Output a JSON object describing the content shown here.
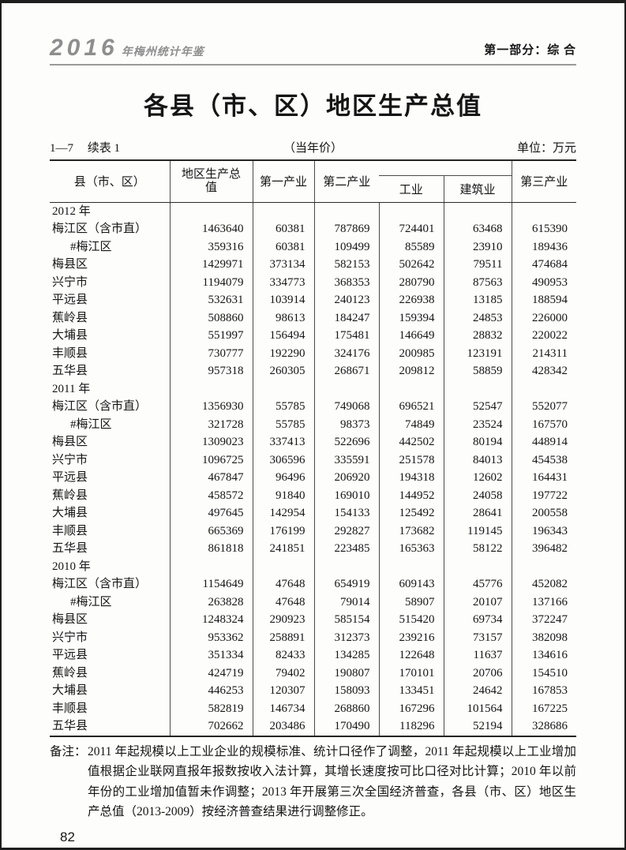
{
  "header": {
    "logo_year": "2016",
    "logo_suffix": "年梅州统计年鉴",
    "section": "第一部分：综 合"
  },
  "title": "各县（市、区）地区生产总值",
  "table_meta": {
    "table_no": "1—7",
    "table_label": "续表 1",
    "price_note": "（当年价）",
    "unit": "单位：万元"
  },
  "table": {
    "headers": {
      "region": "县（市、区）",
      "gdp": "地区生产总值",
      "primary": "第一产业",
      "secondary": "第二产业",
      "industry": "工业",
      "construction": "建筑业",
      "tertiary": "第三产业"
    },
    "sections": [
      {
        "year": "2012 年",
        "rows": [
          {
            "name": "梅江区（含市直）",
            "indent": false,
            "values": [
              "1463640",
              "60381",
              "787869",
              "724401",
              "63468",
              "615390"
            ]
          },
          {
            "name": "#梅江区",
            "indent": true,
            "values": [
              "359316",
              "60381",
              "109499",
              "85589",
              "23910",
              "189436"
            ]
          },
          {
            "name": "梅县区",
            "indent": false,
            "values": [
              "1429971",
              "373134",
              "582153",
              "502642",
              "79511",
              "474684"
            ]
          },
          {
            "name": "兴宁市",
            "indent": false,
            "values": [
              "1194079",
              "334773",
              "368353",
              "280790",
              "87563",
              "490953"
            ]
          },
          {
            "name": "平远县",
            "indent": false,
            "values": [
              "532631",
              "103914",
              "240123",
              "226938",
              "13185",
              "188594"
            ]
          },
          {
            "name": "蕉岭县",
            "indent": false,
            "values": [
              "508860",
              "98613",
              "184247",
              "159394",
              "24853",
              "226000"
            ]
          },
          {
            "name": "大埔县",
            "indent": false,
            "values": [
              "551997",
              "156494",
              "175481",
              "146649",
              "28832",
              "220022"
            ]
          },
          {
            "name": "丰顺县",
            "indent": false,
            "values": [
              "730777",
              "192290",
              "324176",
              "200985",
              "123191",
              "214311"
            ]
          },
          {
            "name": "五华县",
            "indent": false,
            "values": [
              "957318",
              "260305",
              "268671",
              "209812",
              "58859",
              "428342"
            ]
          }
        ]
      },
      {
        "year": "2011 年",
        "rows": [
          {
            "name": "梅江区（含市直）",
            "indent": false,
            "values": [
              "1356930",
              "55785",
              "749068",
              "696521",
              "52547",
              "552077"
            ]
          },
          {
            "name": "#梅江区",
            "indent": true,
            "values": [
              "321728",
              "55785",
              "98373",
              "74849",
              "23524",
              "167570"
            ]
          },
          {
            "name": "梅县区",
            "indent": false,
            "values": [
              "1309023",
              "337413",
              "522696",
              "442502",
              "80194",
              "448914"
            ]
          },
          {
            "name": "兴宁市",
            "indent": false,
            "values": [
              "1096725",
              "306596",
              "335591",
              "251578",
              "84013",
              "454538"
            ]
          },
          {
            "name": "平远县",
            "indent": false,
            "values": [
              "467847",
              "96496",
              "206920",
              "194318",
              "12602",
              "164431"
            ]
          },
          {
            "name": "蕉岭县",
            "indent": false,
            "values": [
              "458572",
              "91840",
              "169010",
              "144952",
              "24058",
              "197722"
            ]
          },
          {
            "name": "大埔县",
            "indent": false,
            "values": [
              "497645",
              "142954",
              "154133",
              "125492",
              "28641",
              "200558"
            ]
          },
          {
            "name": "丰顺县",
            "indent": false,
            "values": [
              "665369",
              "176199",
              "292827",
              "173682",
              "119145",
              "196343"
            ]
          },
          {
            "name": "五华县",
            "indent": false,
            "values": [
              "861818",
              "241851",
              "223485",
              "165363",
              "58122",
              "396482"
            ]
          }
        ]
      },
      {
        "year": "2010 年",
        "rows": [
          {
            "name": "梅江区（含市直）",
            "indent": false,
            "values": [
              "1154649",
              "47648",
              "654919",
              "609143",
              "45776",
              "452082"
            ]
          },
          {
            "name": "#梅江区",
            "indent": true,
            "values": [
              "263828",
              "47648",
              "79014",
              "58907",
              "20107",
              "137166"
            ]
          },
          {
            "name": "梅县区",
            "indent": false,
            "values": [
              "1248324",
              "290923",
              "585154",
              "515420",
              "69734",
              "372247"
            ]
          },
          {
            "name": "兴宁市",
            "indent": false,
            "values": [
              "953362",
              "258891",
              "312373",
              "239216",
              "73157",
              "382098"
            ]
          },
          {
            "name": "平远县",
            "indent": false,
            "values": [
              "351334",
              "82433",
              "134285",
              "122648",
              "11637",
              "134616"
            ]
          },
          {
            "name": "蕉岭县",
            "indent": false,
            "values": [
              "424719",
              "79402",
              "190807",
              "170101",
              "20706",
              "154510"
            ]
          },
          {
            "name": "大埔县",
            "indent": false,
            "values": [
              "446253",
              "120307",
              "158093",
              "133451",
              "24642",
              "167853"
            ]
          },
          {
            "name": "丰顺县",
            "indent": false,
            "values": [
              "582819",
              "146734",
              "268860",
              "167296",
              "101564",
              "167225"
            ]
          },
          {
            "name": "五华县",
            "indent": false,
            "values": [
              "702662",
              "203486",
              "170490",
              "118296",
              "52194",
              "328686"
            ]
          }
        ]
      }
    ]
  },
  "footnote": {
    "label": "备注：",
    "text": "2011 年起规模以上工业企业的规模标准、统计口径作了调整，2011 年起规模以上工业增加值根据企业联网直报年报数按收入法计算，其增长速度按可比口径对比计算；2010 年以前年份的工业增加值暂未作调整；2013 年开展第三次全国经济普查，各县（市、区）地区生产总值（2013-2009）按经济普查结果进行调整修正。"
  },
  "page_number": "82"
}
